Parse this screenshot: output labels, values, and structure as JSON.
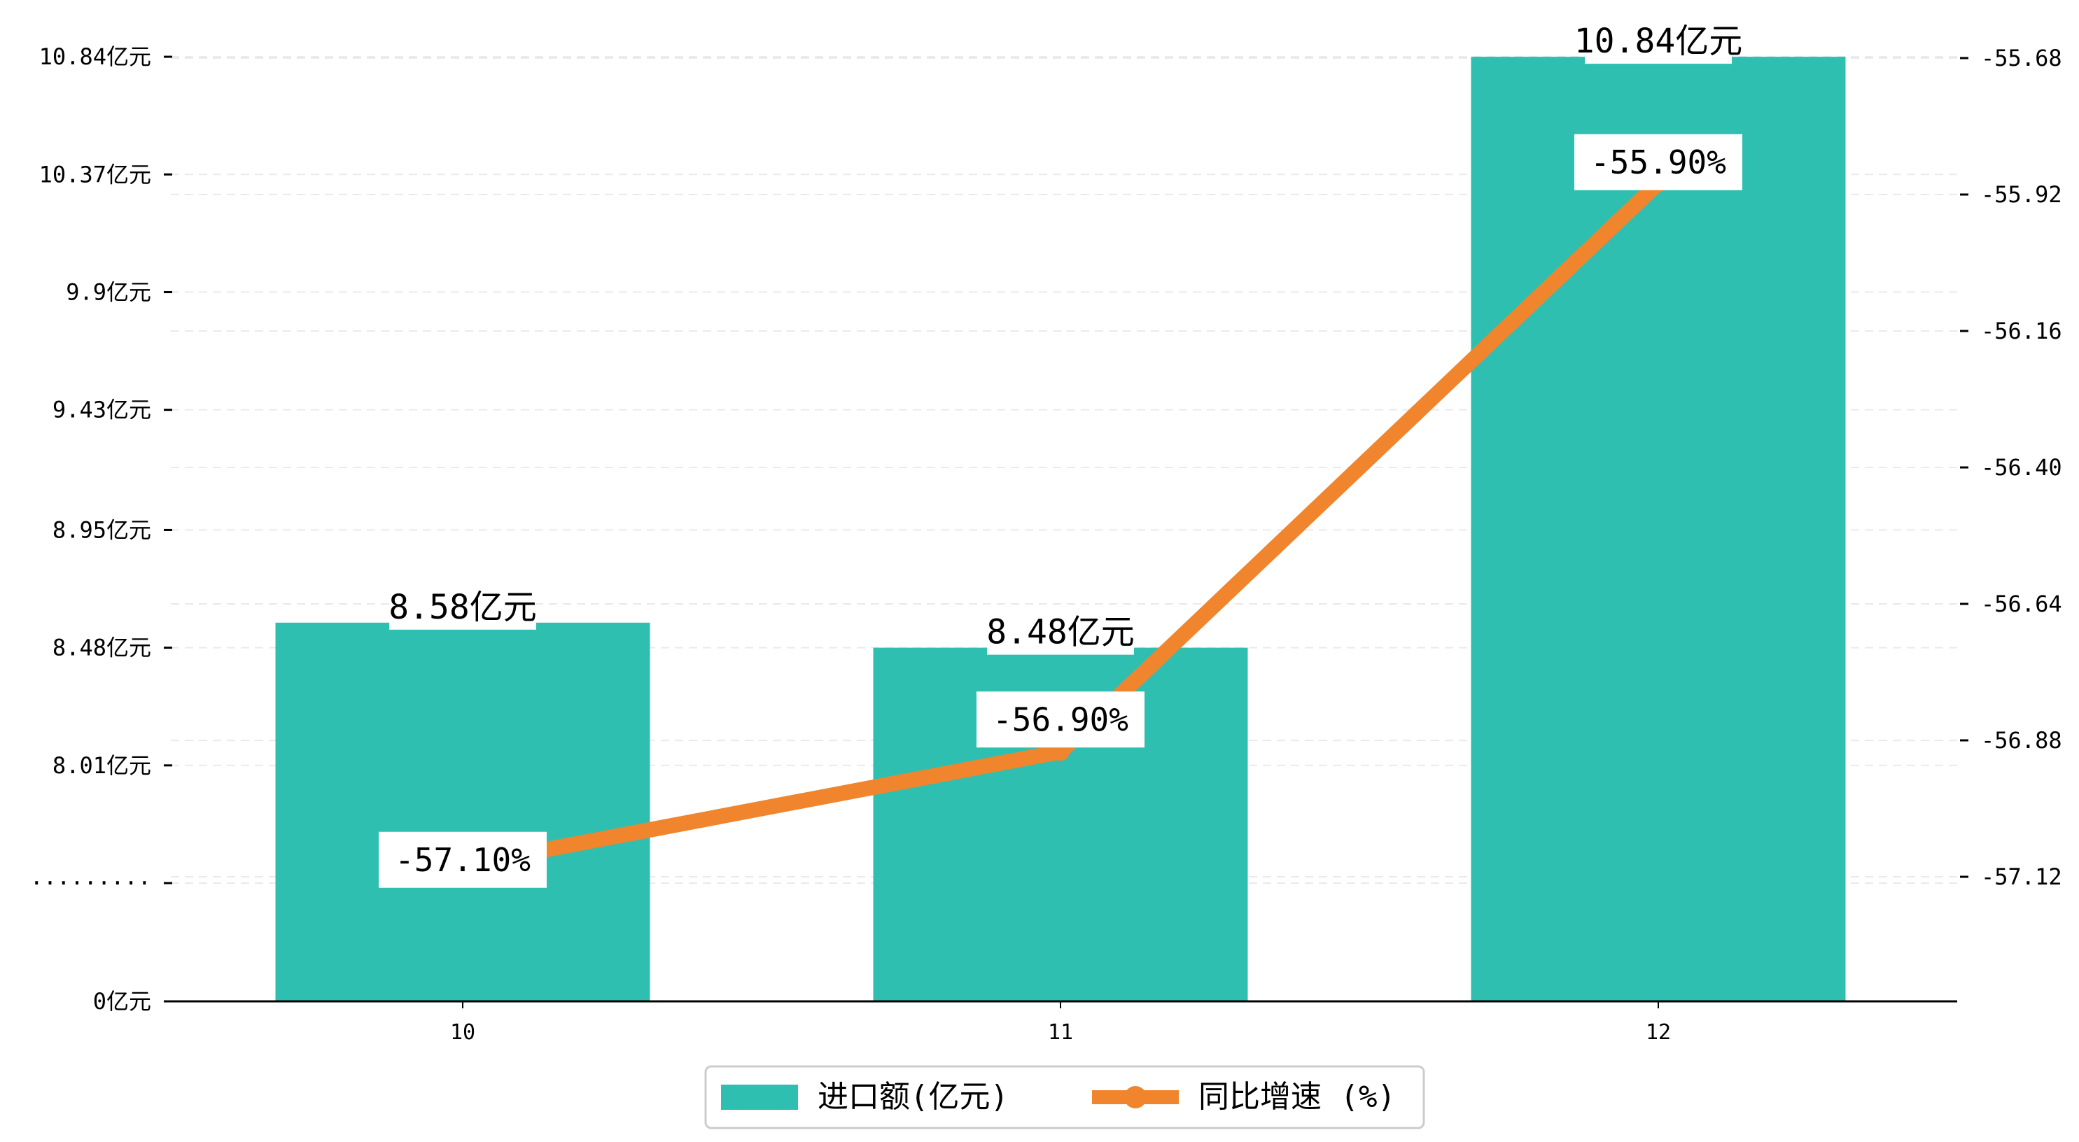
{
  "chart_data": {
    "type": "bar",
    "categories": [
      "10",
      "11",
      "12"
    ],
    "series": [
      {
        "name": "进口额(亿元)",
        "kind": "bar",
        "axis": "left",
        "values": [
          8.58,
          8.48,
          10.84
        ],
        "labels": [
          "8.58亿元",
          "8.48亿元",
          "10.84亿元"
        ]
      },
      {
        "name": "同比增速 (%)",
        "kind": "line",
        "axis": "right",
        "values": [
          -57.1,
          -56.9,
          -55.9
        ],
        "labels": [
          "-57.10%",
          "-56.90%",
          "-55.90%"
        ]
      }
    ],
    "left_axis": {
      "ticks": [
        {
          "value": 0,
          "label": "0亿元"
        },
        {
          "value": 7.54,
          "label": "·········"
        },
        {
          "value": 8.01,
          "label": "8.01亿元"
        },
        {
          "value": 8.48,
          "label": "8.48亿元"
        },
        {
          "value": 8.95,
          "label": "8.95亿元"
        },
        {
          "value": 9.43,
          "label": "9.43亿元"
        },
        {
          "value": 9.9,
          "label": "9.9亿元"
        },
        {
          "value": 10.37,
          "label": "10.37亿元"
        },
        {
          "value": 10.84,
          "label": "10.84亿元"
        }
      ],
      "broken": true
    },
    "right_axis": {
      "ticks": [
        -57.12,
        -56.88,
        -56.64,
        -56.4,
        -56.16,
        -55.92,
        -55.68
      ],
      "tick_labels": [
        "-57.12",
        "-56.88",
        "-56.64",
        "-56.40",
        "-56.16",
        "-55.92",
        "-55.68"
      ],
      "ylim": [
        -57.33,
        -55.68
      ]
    },
    "grid": "dashed-horizontal",
    "legend_position": "bottom-center",
    "colors": {
      "bar": "#2EBFB0",
      "line": "#F0852D",
      "axis": "#000000",
      "grid": "#DDDDDD"
    }
  }
}
